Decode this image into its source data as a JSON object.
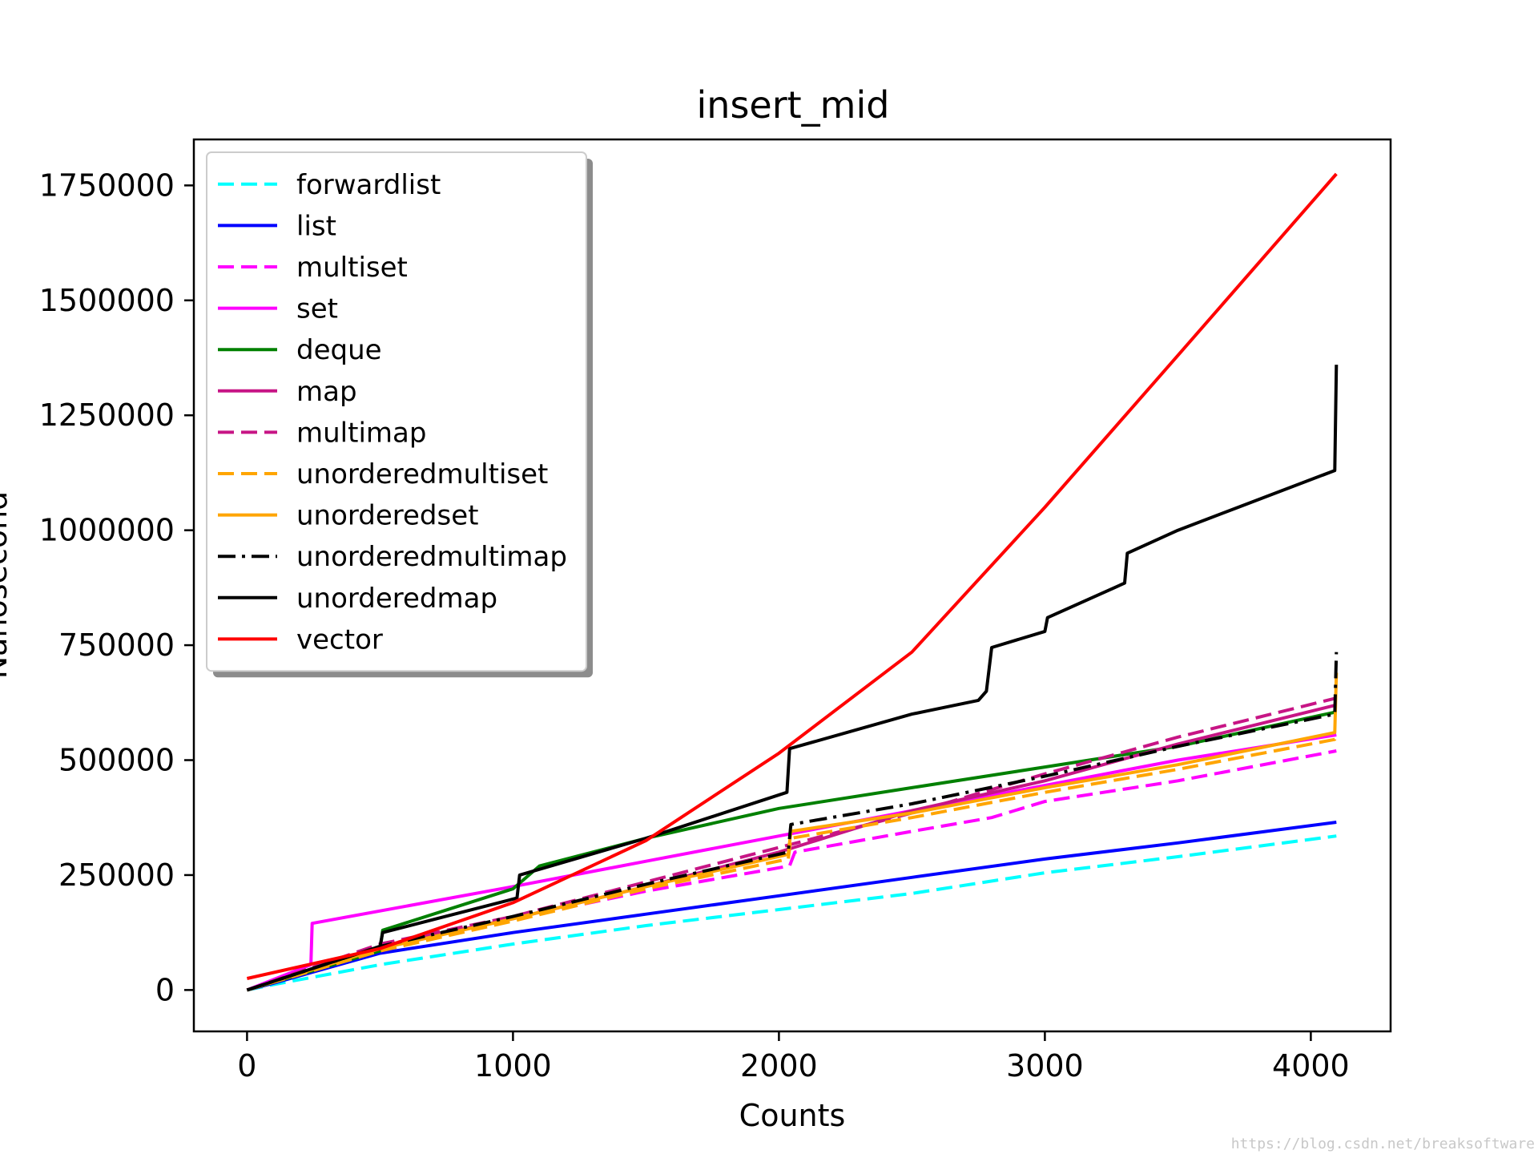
{
  "chart_data": {
    "type": "line",
    "title": "insert_mid",
    "xlabel": "Counts",
    "ylabel": "Nanosecond",
    "xlim": [
      -200,
      4300
    ],
    "ylim": [
      -90000,
      1850000
    ],
    "xticks": [
      0,
      1000,
      2000,
      3000,
      4000
    ],
    "yticks": [
      0,
      250000,
      500000,
      750000,
      1000000,
      1250000,
      1500000,
      1750000
    ],
    "xtick_labels": [
      "0",
      "1000",
      "2000",
      "3000",
      "4000"
    ],
    "ytick_labels": [
      "0",
      "250000",
      "500000",
      "750000",
      "1000000",
      "1250000",
      "1500000",
      "1750000"
    ],
    "grid": false,
    "legend_position": "upper-left",
    "series": [
      {
        "name": "forwardlist",
        "color": "#00ffff",
        "style": "dashed",
        "x": [
          0,
          100,
          500,
          1000,
          1500,
          2000,
          2500,
          3000,
          3500,
          4096
        ],
        "y": [
          0,
          12000,
          55000,
          100000,
          140000,
          175000,
          210000,
          255000,
          290000,
          335000
        ]
      },
      {
        "name": "list",
        "color": "#0000ff",
        "style": "solid",
        "x": [
          0,
          100,
          500,
          1000,
          1500,
          2000,
          2500,
          3000,
          3500,
          4096
        ],
        "y": [
          0,
          15000,
          80000,
          125000,
          165000,
          205000,
          245000,
          285000,
          320000,
          365000
        ]
      },
      {
        "name": "multiset",
        "color": "#ff00ff",
        "style": "dashed",
        "x": [
          0,
          250,
          500,
          1000,
          1500,
          2040,
          2060,
          2500,
          2800,
          3000,
          3500,
          4096
        ],
        "y": [
          0,
          45000,
          85000,
          155000,
          215000,
          270000,
          300000,
          345000,
          375000,
          410000,
          455000,
          520000
        ]
      },
      {
        "name": "set",
        "color": "#ff00ff",
        "style": "solid",
        "x": [
          0,
          240,
          245,
          1000,
          1500,
          2000,
          2500,
          3000,
          3500,
          4096
        ],
        "y": [
          0,
          55000,
          145000,
          225000,
          280000,
          335000,
          390000,
          445000,
          500000,
          555000
        ]
      },
      {
        "name": "deque",
        "color": "#008000",
        "style": "solid",
        "x": [
          0,
          500,
          510,
          1000,
          1100,
          1500,
          2000,
          2500,
          3000,
          3500,
          4096
        ],
        "y": [
          0,
          85000,
          130000,
          220000,
          270000,
          330000,
          395000,
          440000,
          485000,
          530000,
          605000
        ]
      },
      {
        "name": "map",
        "color": "#c71585",
        "style": "solid",
        "x": [
          0,
          500,
          1000,
          1500,
          2000,
          2500,
          3000,
          3500,
          4096
        ],
        "y": [
          0,
          95000,
          155000,
          225000,
          300000,
          390000,
          455000,
          535000,
          620000
        ]
      },
      {
        "name": "multimap",
        "color": "#c71585",
        "style": "dashed",
        "x": [
          0,
          500,
          1000,
          1500,
          2000,
          2500,
          3000,
          3500,
          4096
        ],
        "y": [
          0,
          100000,
          160000,
          235000,
          310000,
          385000,
          470000,
          550000,
          635000
        ]
      },
      {
        "name": "unorderedmultiset",
        "color": "#ffa500",
        "style": "dashed",
        "x": [
          0,
          500,
          1000,
          1500,
          2035,
          2045,
          2500,
          3000,
          3500,
          4090,
          4096
        ],
        "y": [
          0,
          85000,
          150000,
          220000,
          285000,
          330000,
          375000,
          430000,
          480000,
          545000,
          560000
        ]
      },
      {
        "name": "unorderedset",
        "color": "#ffa500",
        "style": "solid",
        "x": [
          0,
          500,
          1000,
          1500,
          2035,
          2045,
          2500,
          3000,
          3500,
          4090,
          4096
        ],
        "y": [
          0,
          90000,
          155000,
          225000,
          295000,
          345000,
          385000,
          440000,
          490000,
          560000,
          690000
        ]
      },
      {
        "name": "unorderedmultimap",
        "color": "#000000",
        "style": "dashdot",
        "x": [
          0,
          500,
          1000,
          1500,
          2035,
          2045,
          2500,
          3000,
          3500,
          4090,
          4096
        ],
        "y": [
          0,
          95000,
          160000,
          230000,
          300000,
          360000,
          405000,
          465000,
          530000,
          600000,
          735000
        ]
      },
      {
        "name": "unorderedmap",
        "color": "#000000",
        "style": "solid",
        "x": [
          0,
          500,
          510,
          1015,
          1025,
          1500,
          2030,
          2040,
          2500,
          2750,
          2780,
          2800,
          3000,
          3010,
          3300,
          3310,
          3500,
          4090,
          4096
        ],
        "y": [
          0,
          95000,
          125000,
          200000,
          250000,
          330000,
          430000,
          525000,
          600000,
          630000,
          650000,
          745000,
          780000,
          810000,
          885000,
          950000,
          1000000,
          1130000,
          1360000
        ]
      },
      {
        "name": "vector",
        "color": "#ff0000",
        "style": "solid",
        "x": [
          0,
          500,
          1000,
          1500,
          2000,
          2500,
          3000,
          3500,
          4096
        ],
        "y": [
          25000,
          90000,
          190000,
          325000,
          515000,
          735000,
          1050000,
          1380000,
          1775000
        ]
      }
    ]
  },
  "watermark": "https://blog.csdn.net/breaksoftware"
}
